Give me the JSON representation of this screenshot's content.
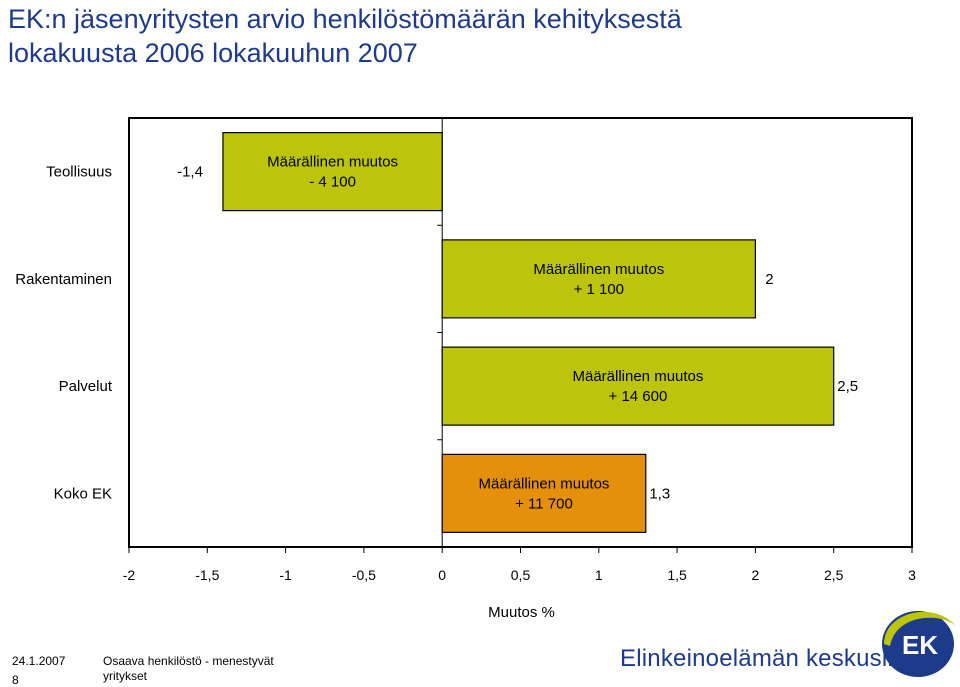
{
  "page": {
    "title_line1": "EK:n jäsenyritysten arvio henkilöstömäärän kehityksestä",
    "title_line2": "lokakuusta 2006 lokakuuhun 2007",
    "footer_date": "24.1.2007",
    "footer_page": "8",
    "footer_text": "Osaava henkilöstö - menestyvät yritykset",
    "brand": "Elinkeinoelämän keskusliitto",
    "logo_text": "EK"
  },
  "colors": {
    "title": "#1e3a8a",
    "bar_green": "#bcc40c",
    "bar_orange": "#e4900a",
    "brand_blue": "#1e3a8a"
  },
  "chart_data": {
    "type": "bar",
    "orientation": "horizontal",
    "categories": [
      "Teollisuus",
      "Rakentaminen",
      "Palvelut",
      "Koko EK"
    ],
    "values": [
      -1.4,
      2,
      2.5,
      1.3
    ],
    "value_labels": [
      "-1,4",
      "2",
      "2,5",
      "1,3"
    ],
    "annotations": [
      [
        "Määrällinen muutos",
        "- 4 100"
      ],
      [
        "Määrällinen muutos",
        "+ 1 100"
      ],
      [
        "Määrällinen muutos",
        "+ 14 600"
      ],
      [
        "Määrällinen muutos",
        "+ 11 700"
      ]
    ],
    "bar_colors": [
      "#bcc40c",
      "#bcc40c",
      "#bcc40c",
      "#e4900a"
    ],
    "xlabel": "Muutos %",
    "xlim": [
      -2,
      3
    ],
    "xticks": [
      -2,
      -1.5,
      -1,
      -0.5,
      0,
      0.5,
      1,
      1.5,
      2,
      2.5,
      3
    ],
    "xtick_labels": [
      "-2",
      "-1,5",
      "-1",
      "-0,5",
      "0",
      "0,5",
      "1",
      "1,5",
      "2",
      "2,5",
      "3"
    ],
    "grid": false
  }
}
